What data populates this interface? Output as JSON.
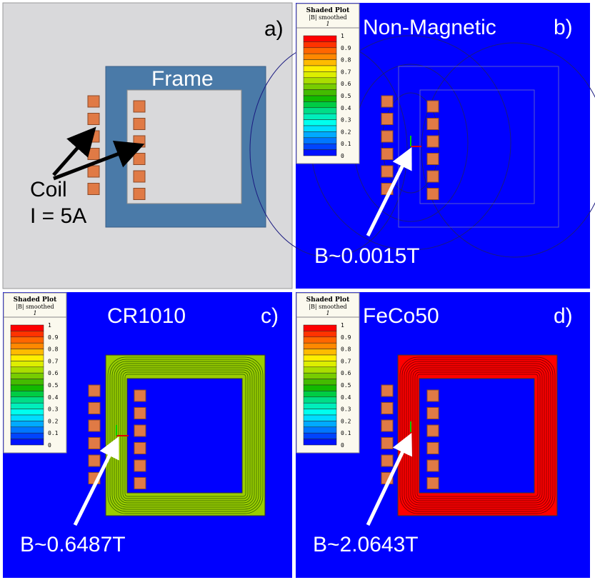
{
  "panels": {
    "a": {
      "tag": "a)",
      "frame_label": "Frame",
      "coil_label": "Coil",
      "current_label": "I = 5A"
    },
    "b": {
      "tag": "b)",
      "title": "Non-Magnetic",
      "field_label": "B~0.0015T"
    },
    "c": {
      "tag": "c)",
      "title": "CR1010",
      "field_label": "B~0.6487T"
    },
    "d": {
      "tag": "d)",
      "title": "FeCo50",
      "field_label": "B~2.0643T"
    }
  },
  "legend": {
    "title": "Shaded Plot",
    "subtitle": "|B| smoothed",
    "unit": "1",
    "ticks": [
      "1",
      "0.9",
      "0.8",
      "0.7",
      "0.6",
      "0.5",
      "0.4",
      "0.3",
      "0.2",
      "0.1",
      "0"
    ],
    "colors": [
      "#ff0000",
      "#ff3300",
      "#ff6600",
      "#ff8800",
      "#ffbb00",
      "#ffee00",
      "#ddee00",
      "#aadd00",
      "#77cc00",
      "#44bb00",
      "#11bb00",
      "#00cc44",
      "#00dd88",
      "#00eebb",
      "#00ffee",
      "#00ddff",
      "#00aaff",
      "#0077ff",
      "#0044ff",
      "#0011ff"
    ]
  },
  "colors": {
    "background_a": "#d9d9db",
    "frame_a": "#4a7aa8",
    "coil": "#e07a45",
    "field_bg": "#0000ff",
    "frame_c": "#9acd00",
    "frame_d": "#ff0000"
  }
}
